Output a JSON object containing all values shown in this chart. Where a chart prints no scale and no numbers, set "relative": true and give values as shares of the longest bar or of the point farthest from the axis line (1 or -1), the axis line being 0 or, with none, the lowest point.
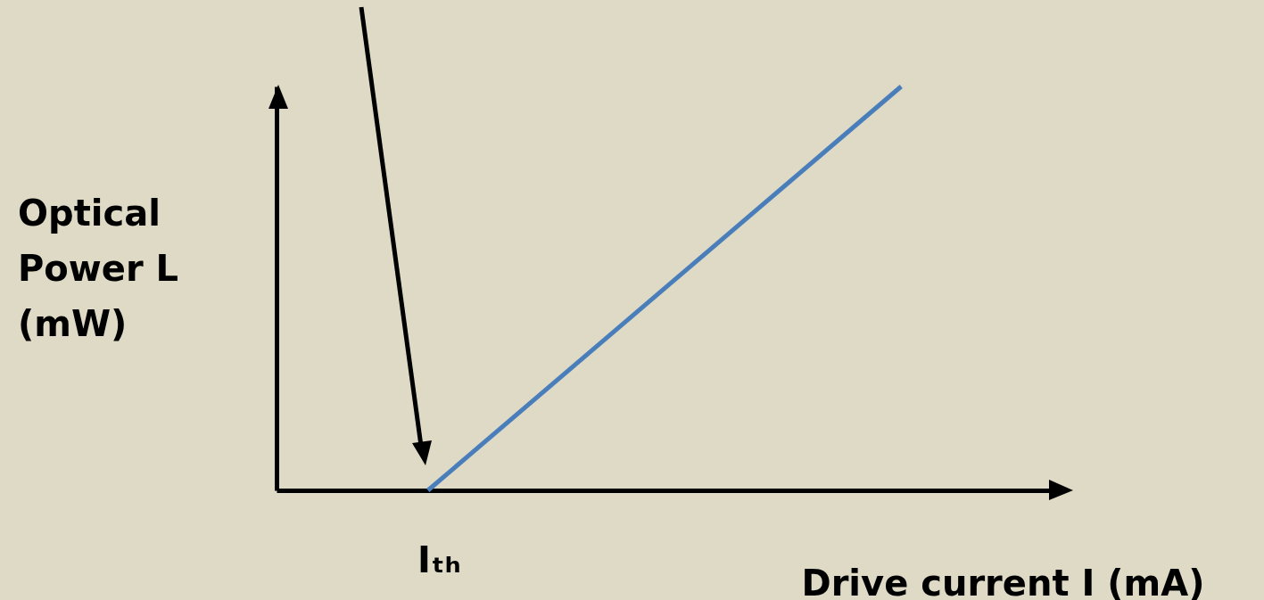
{
  "chart_data": {
    "type": "line",
    "relative": true,
    "xlabel": "Drive current I (mA)",
    "ylabel": "Optical Power L (mW)",
    "categories": [
      null,
      null
    ],
    "annotations": [
      "Iₜₕ"
    ],
    "series": [
      {
        "color": "#4a7ebb",
        "values": [
          0,
          1
        ]
      }
    ]
  }
}
